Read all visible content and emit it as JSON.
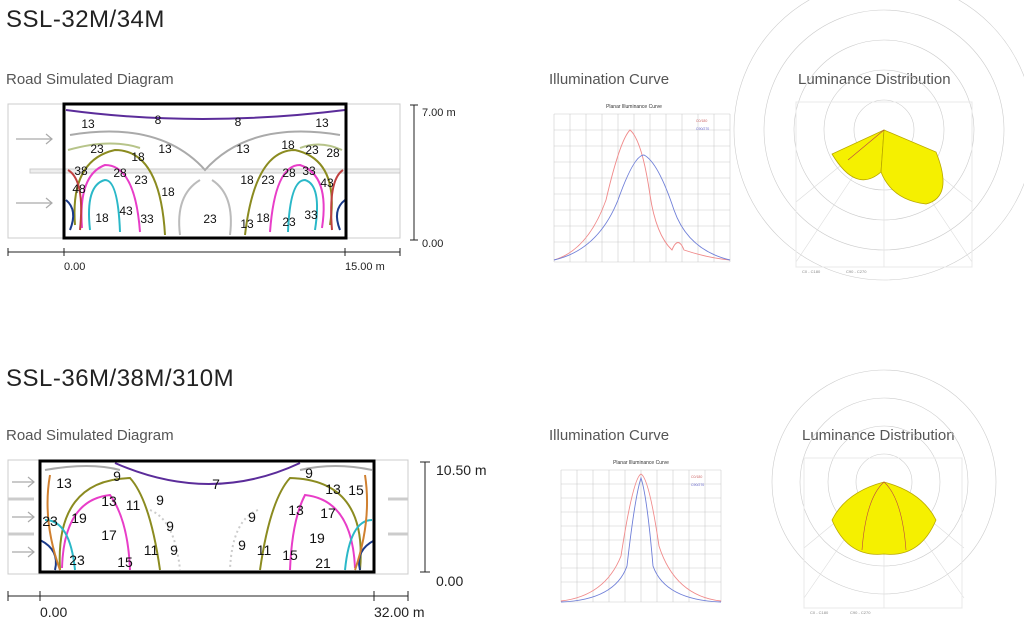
{
  "products": [
    {
      "model": "SSL-32M/34M",
      "road_caption": "Road Simulated Diagram",
      "curve_caption": "Illumination Curve",
      "lum_caption": "Luminance Distribution",
      "width_start": "0.00",
      "width_end": "15.00 m",
      "height_top": "7.00 m",
      "height_bottom": "0.00",
      "contour_labels": [
        "8",
        "8",
        "13",
        "13",
        "13",
        "13",
        "23",
        "18",
        "18",
        "23",
        "28",
        "38",
        "28",
        "23",
        "18",
        "23",
        "28",
        "33",
        "43",
        "48",
        "18",
        "18",
        "43",
        "33",
        "23",
        "13",
        "18",
        "23",
        "33",
        "43"
      ],
      "curve_chart": {
        "title": "Planar Illuminance Curve",
        "legend": [
          "C0/180",
          "C90/270"
        ],
        "colors": {
          "c0": "#f08a8a",
          "c90": "#6f7fd8"
        }
      },
      "lum_legend": [
        "C0 - C180",
        "C90 - C270"
      ]
    },
    {
      "model": "SSL-36M/38M/310M",
      "road_caption": "Road Simulated Diagram",
      "curve_caption": "Illumination Curve",
      "lum_caption": "Luminance Distribution",
      "width_start": "0.00",
      "width_end": "32.00 m",
      "height_top": "10.50 m",
      "height_bottom": "0.00",
      "contour_labels": [
        "13",
        "9",
        "7",
        "9",
        "13",
        "15",
        "13",
        "11",
        "9",
        "13",
        "17",
        "23",
        "19",
        "9",
        "9",
        "19",
        "17",
        "11",
        "9",
        "9",
        "11",
        "15",
        "23",
        "15",
        "21"
      ],
      "curve_chart": {
        "title": "Planar Illuminance Curve",
        "legend": [
          "C0/180",
          "C90/270"
        ],
        "colors": {
          "c0": "#f08a8a",
          "c90": "#6f7fd8"
        }
      },
      "lum_legend": [
        "C0 - C180",
        "C90 - C270"
      ]
    }
  ]
}
